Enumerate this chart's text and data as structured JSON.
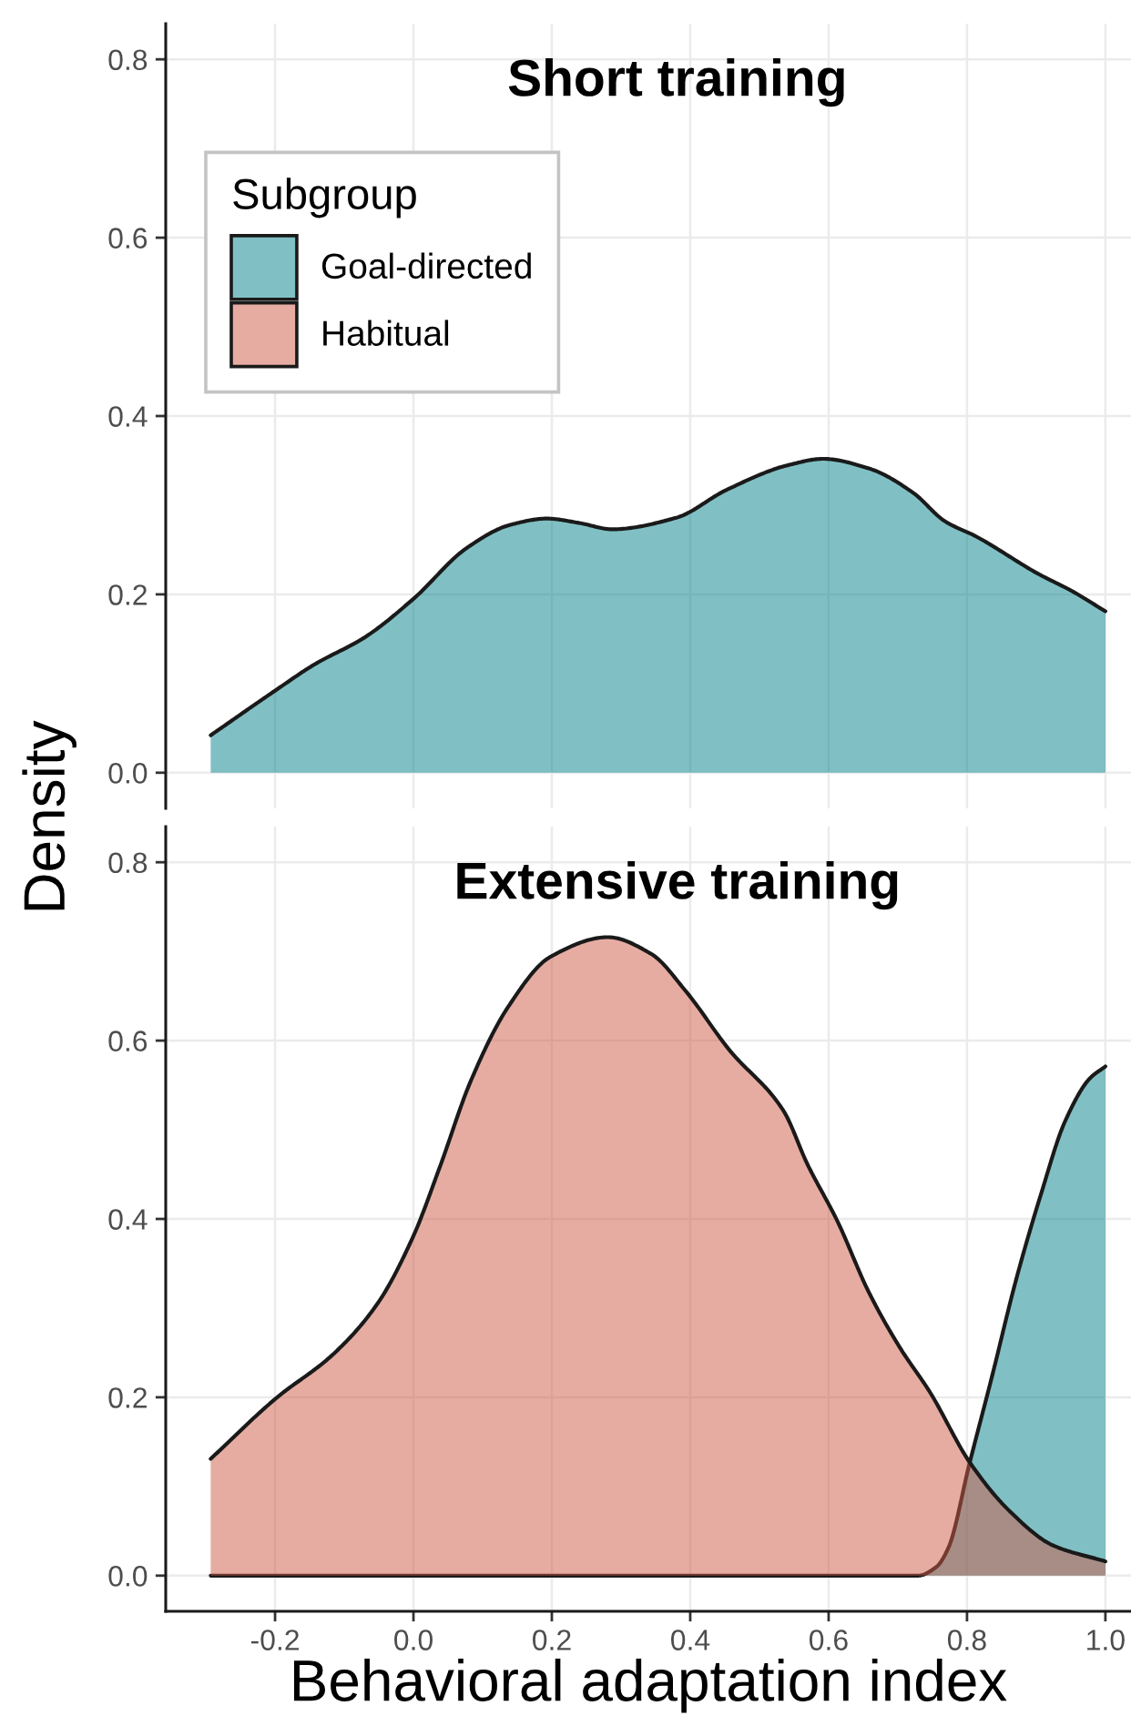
{
  "chart_data": [
    {
      "type": "area",
      "title": "Short training",
      "ylabel": "Density",
      "legend_title": "Subgroup",
      "legend": "top left",
      "grid": true,
      "tick_labels": "y",
      "xlim": [
        -0.358,
        1.037
      ],
      "xticks": [
        -0.2,
        0.0,
        0.2,
        0.4,
        0.6,
        0.8,
        1.0
      ],
      "ylim": [
        -0.04,
        0.84
      ],
      "yticks": [
        {
          "value": 0,
          "label": "0.0"
        },
        0.2,
        0.4,
        0.6,
        0.8
      ],
      "series": [
        {
          "name": "Goal-directed",
          "color": "#80c0c4",
          "x": [
            -0.293,
            -0.2,
            -0.144,
            -0.07,
            0.0,
            0.077,
            0.14,
            0.193,
            0.24,
            0.287,
            0.38,
            0.452,
            0.542,
            0.592,
            0.659,
            0.722,
            0.768,
            0.813,
            0.903,
            0.951,
            1.0
          ],
          "values": [
            0.042,
            0.092,
            0.121,
            0.152,
            0.195,
            0.252,
            0.278,
            0.285,
            0.28,
            0.273,
            0.286,
            0.317,
            0.345,
            0.352,
            0.341,
            0.314,
            0.282,
            0.265,
            0.223,
            0.204,
            0.181
          ]
        },
        {
          "name": "Habitual",
          "color": "#e6aca2"
        }
      ]
    },
    {
      "type": "area",
      "title": "Extensive training",
      "xlabel": "Behavioral adaptation index",
      "grid": true,
      "xlim": [
        -0.358,
        1.037
      ],
      "xticks": [
        -0.2,
        {
          "value": 0,
          "label": "0.0"
        },
        0.2,
        0.4,
        0.6,
        0.8,
        {
          "value": 1,
          "label": "1.0"
        }
      ],
      "ylim": [
        -0.04,
        0.84
      ],
      "yticks": [
        {
          "value": 0,
          "label": "0.0"
        },
        0.2,
        0.4,
        0.6,
        0.8
      ],
      "series": [
        {
          "color": "#80c0c4",
          "x": [
            -0.293,
            0.729,
            0.756,
            0.773,
            0.804,
            0.836,
            0.871,
            0.907,
            0.942,
            0.978,
            1.0
          ],
          "values": [
            0.0,
            0.0,
            0.01,
            0.031,
            0.127,
            0.223,
            0.332,
            0.428,
            0.51,
            0.558,
            0.571
          ]
        },
        {
          "color": "#e6aca2",
          "x": [
            -0.293,
            -0.2,
            -0.115,
            -0.052,
            0.0,
            0.038,
            0.083,
            0.137,
            0.198,
            0.281,
            0.344,
            0.393,
            0.456,
            0.535,
            0.569,
            0.613,
            0.658,
            0.702,
            0.747,
            0.804,
            0.862,
            0.924,
            1.0
          ],
          "values": [
            0.131,
            0.198,
            0.249,
            0.305,
            0.381,
            0.458,
            0.555,
            0.638,
            0.694,
            0.716,
            0.697,
            0.656,
            0.59,
            0.521,
            0.462,
            0.397,
            0.318,
            0.257,
            0.205,
            0.127,
            0.072,
            0.034,
            0.016
          ]
        }
      ]
    }
  ]
}
